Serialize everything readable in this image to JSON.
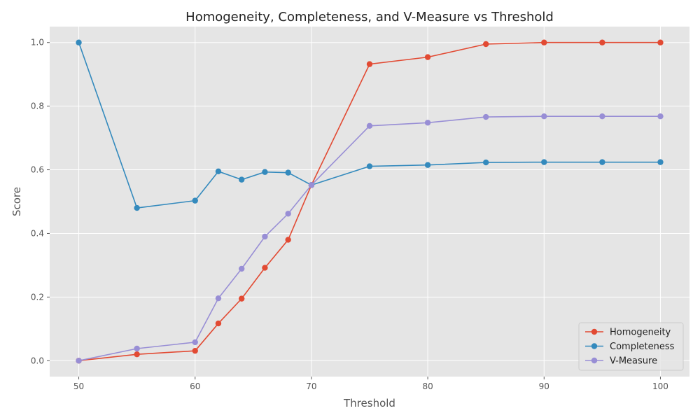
{
  "chart_data": {
    "type": "line",
    "title": "Homogeneity, Completeness, and V-Measure vs Threshold",
    "xlabel": "Threshold",
    "ylabel": "Score",
    "xlim": [
      47.5,
      102.5
    ],
    "ylim": [
      -0.05,
      1.05
    ],
    "xticks": [
      50,
      60,
      70,
      80,
      90,
      100
    ],
    "yticks": [
      "0.0",
      "0.2",
      "0.4",
      "0.6",
      "0.8",
      "1.0"
    ],
    "grid": true,
    "legend_position": "bottom-right",
    "x": [
      50,
      55,
      60,
      62,
      64,
      66,
      68,
      70,
      75,
      80,
      85,
      90,
      95,
      100
    ],
    "series": [
      {
        "name": "Homogeneity",
        "color": "#E24A33",
        "values": [
          0.0,
          0.02,
          0.031,
          0.117,
          0.195,
          0.292,
          0.38,
          0.552,
          0.932,
          0.954,
          0.995,
          1.0,
          1.0,
          1.0
        ]
      },
      {
        "name": "Completeness",
        "color": "#348ABD",
        "values": [
          1.0,
          0.48,
          0.503,
          0.595,
          0.569,
          0.593,
          0.591,
          0.552,
          0.611,
          0.615,
          0.623,
          0.624,
          0.624,
          0.624
        ]
      },
      {
        "name": "V-Measure",
        "color": "#988ED5",
        "values": [
          0.0,
          0.038,
          0.058,
          0.196,
          0.289,
          0.39,
          0.462,
          0.552,
          0.738,
          0.748,
          0.766,
          0.768,
          0.768,
          0.768
        ]
      }
    ]
  }
}
